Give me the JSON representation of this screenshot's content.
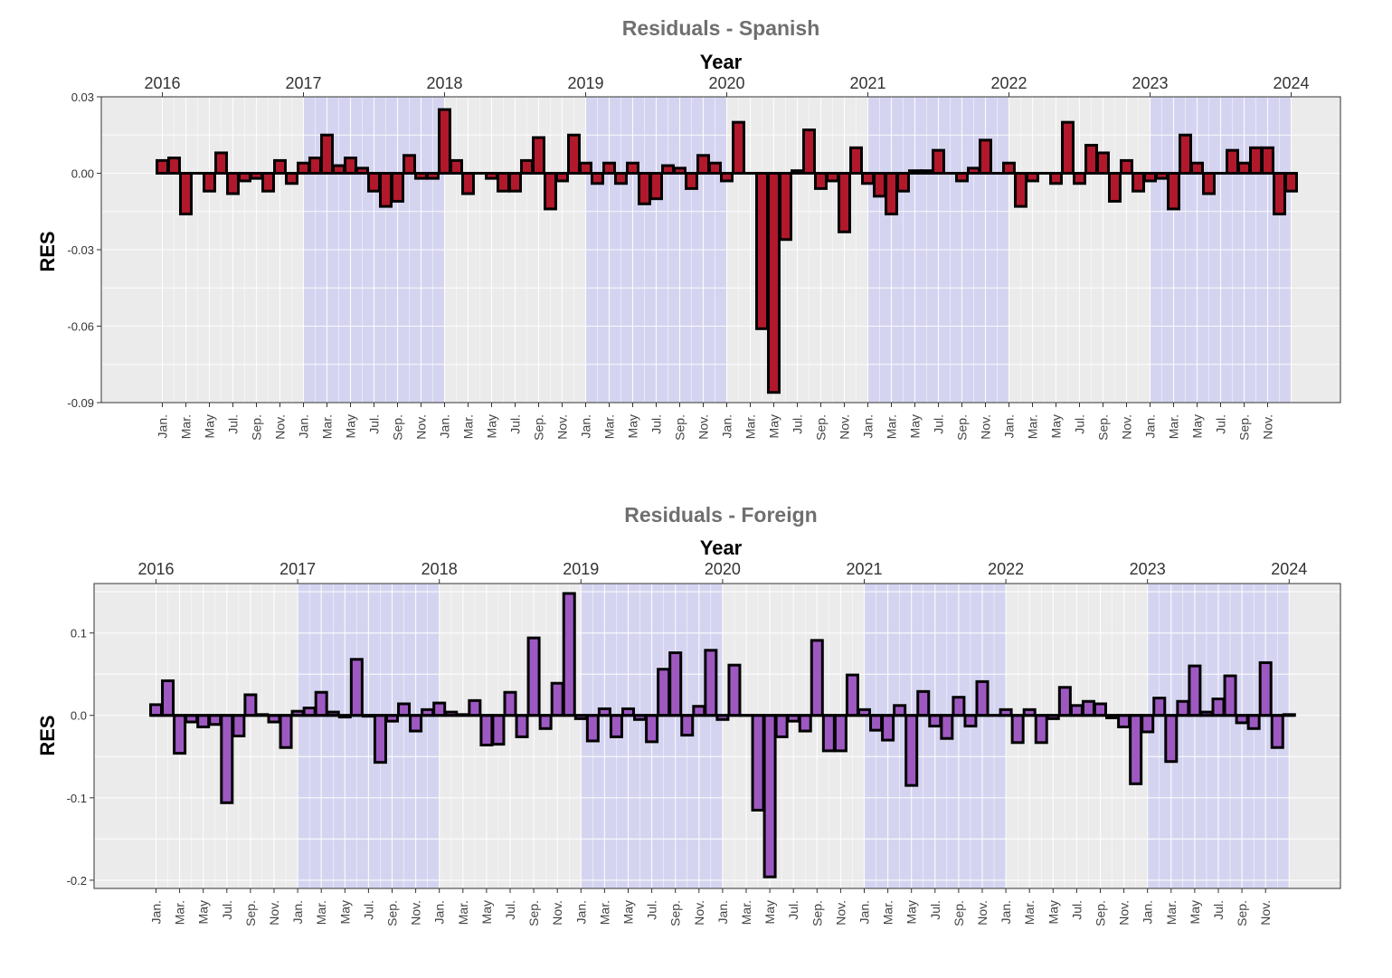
{
  "chart_data": [
    {
      "type": "bar",
      "title": "Residuals - Spanish",
      "xlabel": "Year",
      "ylabel": "RES",
      "ylim": [
        -0.09,
        0.03
      ],
      "yticks": [
        "0.03",
        "0.00",
        "-0.03",
        "-0.06",
        "-0.09"
      ],
      "ytick_values": [
        0.03,
        0.0,
        -0.03,
        -0.06,
        -0.09
      ],
      "year_ticks": [
        "2016",
        "2017",
        "2018",
        "2019",
        "2020",
        "2021",
        "2022",
        "2023",
        "2024"
      ],
      "month_ticks": [
        "Jan.",
        "Mar.",
        "May",
        "Jul.",
        "Sep.",
        "Nov."
      ],
      "shaded_years": [
        "2017",
        "2019",
        "2021",
        "2023"
      ],
      "bar_color": "#b2182b",
      "shade_color": "#d1d0f1",
      "panel_color": "#ebebeb",
      "start": "2016-01",
      "values": [
        0.005,
        0.006,
        -0.016,
        0.0,
        -0.007,
        0.008,
        -0.008,
        -0.003,
        -0.002,
        -0.007,
        0.005,
        -0.004,
        0.004,
        0.006,
        0.015,
        0.003,
        0.006,
        0.002,
        -0.007,
        -0.013,
        -0.011,
        0.007,
        -0.002,
        -0.002,
        0.025,
        0.005,
        -0.008,
        0.0,
        -0.002,
        -0.007,
        -0.007,
        0.005,
        0.014,
        -0.014,
        -0.003,
        0.015,
        0.004,
        -0.004,
        0.004,
        -0.004,
        0.004,
        -0.012,
        -0.01,
        0.003,
        0.002,
        -0.006,
        0.007,
        0.004,
        -0.003,
        0.02,
        0.0,
        -0.061,
        -0.086,
        -0.026,
        0.001,
        0.017,
        -0.006,
        -0.003,
        -0.023,
        0.01,
        -0.004,
        -0.009,
        -0.016,
        -0.007,
        0.001,
        0.001,
        0.009,
        0.0,
        -0.003,
        0.002,
        0.013,
        0.0,
        0.004,
        -0.013,
        -0.003,
        0.0,
        -0.004,
        0.02,
        -0.004,
        0.011,
        0.008,
        -0.011,
        0.005,
        -0.007,
        -0.003,
        -0.002,
        -0.014,
        0.015,
        0.004,
        -0.008,
        0.0,
        0.009,
        0.004,
        0.01,
        0.01,
        -0.016,
        -0.007
      ]
    },
    {
      "type": "bar",
      "title": "Residuals - Foreign",
      "xlabel": "Year",
      "ylabel": "RES",
      "ylim": [
        -0.21,
        0.16
      ],
      "yticks": [
        "0.1",
        "0.0",
        "-0.1",
        "-0.2"
      ],
      "ytick_values": [
        0.1,
        0.0,
        -0.1,
        -0.2
      ],
      "year_ticks": [
        "2016",
        "2017",
        "2018",
        "2019",
        "2020",
        "2021",
        "2022",
        "2023",
        "2024"
      ],
      "month_ticks": [
        "Jan.",
        "Mar.",
        "May",
        "Jul.",
        "Sep.",
        "Nov."
      ],
      "shaded_years": [
        "2017",
        "2019",
        "2021",
        "2023"
      ],
      "bar_color": "#9e59c1",
      "shade_color": "#d1d0f1",
      "panel_color": "#ebebeb",
      "start": "2016-01",
      "values": [
        0.013,
        0.042,
        -0.046,
        -0.008,
        -0.014,
        -0.011,
        -0.106,
        -0.025,
        0.025,
        0.001,
        -0.008,
        -0.039,
        0.005,
        0.009,
        0.028,
        0.004,
        -0.002,
        0.068,
        -0.001,
        -0.057,
        -0.007,
        0.014,
        -0.019,
        0.007,
        0.015,
        0.004,
        0.001,
        0.018,
        -0.036,
        -0.035,
        0.028,
        -0.026,
        0.094,
        -0.016,
        0.039,
        0.148,
        -0.004,
        -0.031,
        0.008,
        -0.026,
        0.008,
        -0.005,
        -0.032,
        0.056,
        0.076,
        -0.024,
        0.011,
        0.079,
        -0.005,
        0.061,
        0.0,
        -0.115,
        -0.196,
        -0.026,
        -0.007,
        -0.019,
        0.091,
        -0.043,
        -0.043,
        0.049,
        0.007,
        -0.018,
        -0.03,
        0.012,
        -0.085,
        0.029,
        -0.013,
        -0.028,
        0.022,
        -0.013,
        0.041,
        0.0,
        0.007,
        -0.033,
        0.007,
        -0.033,
        -0.004,
        0.034,
        0.012,
        0.017,
        0.014,
        -0.003,
        -0.014,
        -0.083,
        -0.02,
        0.021,
        -0.056,
        0.017,
        0.06,
        0.004,
        0.02,
        0.048,
        -0.009,
        -0.016,
        0.064,
        -0.039,
        0.001
      ]
    }
  ]
}
